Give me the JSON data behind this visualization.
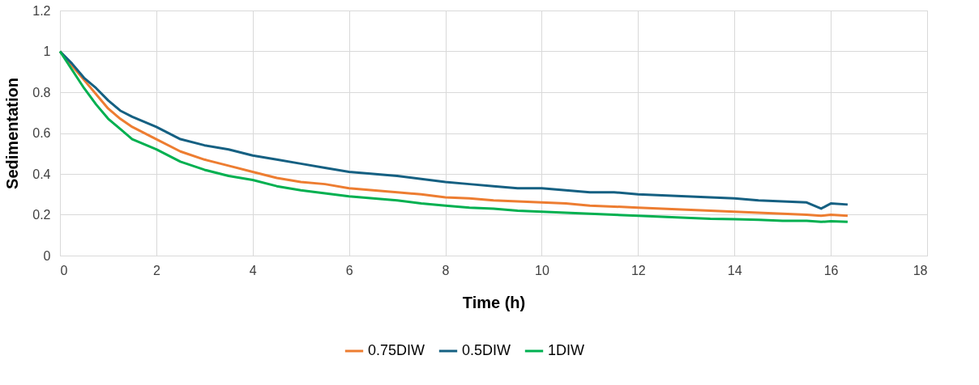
{
  "chart_data": {
    "type": "line",
    "xlabel": "Time (h)",
    "ylabel": "Sedimentation",
    "x": [
      0,
      0.25,
      0.5,
      0.75,
      1,
      1.25,
      1.5,
      2,
      2.5,
      3,
      3.5,
      4,
      4.5,
      5,
      5.5,
      6,
      6.5,
      7,
      7.5,
      8,
      8.5,
      9,
      9.5,
      10,
      10.5,
      11,
      11.5,
      12,
      12.5,
      13,
      13.5,
      14,
      14.5,
      15,
      15.5,
      15.8,
      16,
      16.35
    ],
    "series": [
      {
        "name": "0.75DIW",
        "color": "#ed7d31",
        "values": [
          1.0,
          0.93,
          0.86,
          0.79,
          0.72,
          0.67,
          0.63,
          0.57,
          0.51,
          0.47,
          0.44,
          0.41,
          0.38,
          0.36,
          0.35,
          0.33,
          0.32,
          0.31,
          0.3,
          0.285,
          0.28,
          0.27,
          0.265,
          0.26,
          0.255,
          0.245,
          0.24,
          0.235,
          0.23,
          0.225,
          0.22,
          0.215,
          0.21,
          0.205,
          0.2,
          0.195,
          0.2,
          0.195
        ]
      },
      {
        "name": "0.5DIW",
        "color": "#156082",
        "values": [
          1.0,
          0.94,
          0.87,
          0.82,
          0.76,
          0.71,
          0.68,
          0.63,
          0.57,
          0.54,
          0.52,
          0.49,
          0.47,
          0.45,
          0.43,
          0.41,
          0.4,
          0.39,
          0.375,
          0.36,
          0.35,
          0.34,
          0.33,
          0.33,
          0.32,
          0.31,
          0.31,
          0.3,
          0.295,
          0.29,
          0.285,
          0.28,
          0.27,
          0.265,
          0.26,
          0.23,
          0.255,
          0.25
        ]
      },
      {
        "name": "1DIW",
        "color": "#00b050",
        "values": [
          1.0,
          0.91,
          0.82,
          0.74,
          0.67,
          0.62,
          0.57,
          0.52,
          0.46,
          0.42,
          0.39,
          0.37,
          0.34,
          0.32,
          0.305,
          0.29,
          0.28,
          0.27,
          0.255,
          0.245,
          0.235,
          0.23,
          0.22,
          0.215,
          0.21,
          0.205,
          0.2,
          0.195,
          0.19,
          0.185,
          0.18,
          0.178,
          0.175,
          0.17,
          0.17,
          0.165,
          0.168,
          0.165
        ]
      }
    ],
    "xlim": [
      0,
      18
    ],
    "xticks": [
      0,
      2,
      4,
      6,
      8,
      10,
      12,
      14,
      16,
      18
    ],
    "ylim": [
      0,
      1.2
    ],
    "yticks": [
      0,
      0.2,
      0.4,
      0.6,
      0.8,
      1,
      1.2
    ],
    "grid": true,
    "legend": "bottom",
    "marker": "none",
    "line_style": "solid"
  }
}
